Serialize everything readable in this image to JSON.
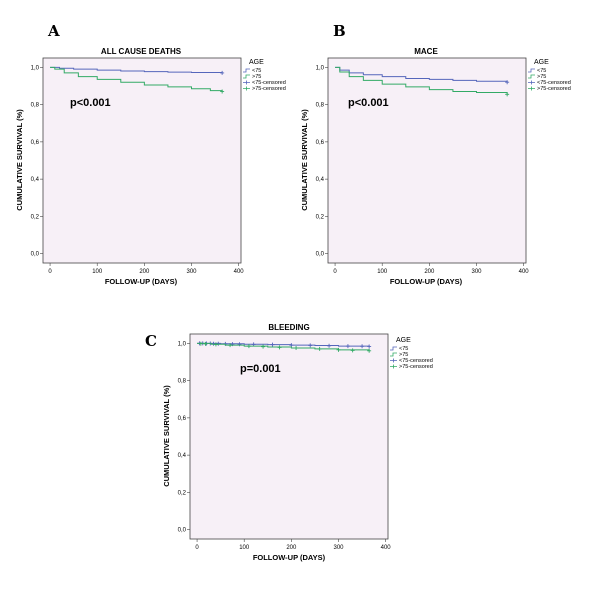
{
  "colors": {
    "under75": "#5566bb",
    "over75": "#33aa66",
    "plot_bg": "#f7f0f7"
  },
  "chart_data": [
    {
      "panel": "A",
      "type": "line",
      "title": "ALL CAUSE DEATHS",
      "xlabel": "FOLLOW-UP (DAYS)",
      "ylabel": "CUMULATIVE SURVIVAL (%)",
      "annotation": "p<0.001",
      "legend_title": "AGE",
      "legend": [
        "<75",
        ">75",
        "<75-censored",
        ">75-censored"
      ],
      "xlim": [
        -15,
        405
      ],
      "ylim": [
        -0.05,
        1.05
      ],
      "xticks": [
        0,
        100,
        200,
        300,
        400
      ],
      "yticks": [
        0.0,
        0.2,
        0.4,
        0.6,
        0.8,
        1.0
      ],
      "yticklabels": [
        "0,0",
        "0,2",
        "0,4",
        "0,6",
        "0,8",
        "1,0"
      ],
      "series": [
        {
          "name": "<75",
          "x": [
            0,
            20,
            50,
            100,
            150,
            200,
            250,
            300,
            365
          ],
          "y": [
            1.0,
            0.995,
            0.99,
            0.985,
            0.98,
            0.977,
            0.974,
            0.972,
            0.97
          ],
          "censored": [
            [
              365,
              0.97
            ]
          ]
        },
        {
          "name": ">75",
          "x": [
            0,
            10,
            30,
            60,
            100,
            150,
            200,
            250,
            300,
            340,
            365
          ],
          "y": [
            1.0,
            0.99,
            0.97,
            0.95,
            0.935,
            0.92,
            0.905,
            0.895,
            0.885,
            0.875,
            0.87
          ],
          "censored": [
            [
              365,
              0.87
            ]
          ]
        }
      ]
    },
    {
      "panel": "B",
      "type": "line",
      "title": "MACE",
      "xlabel": "FOLLOW-UP (DAYS)",
      "ylabel": "CUMULATIVE SURVIVAL (%)",
      "annotation": "p<0.001",
      "legend_title": "AGE",
      "legend": [
        "<75",
        ">75",
        "<75-censored",
        ">75-censored"
      ],
      "xlim": [
        -15,
        405
      ],
      "ylim": [
        -0.05,
        1.05
      ],
      "xticks": [
        0,
        100,
        200,
        300,
        400
      ],
      "yticks": [
        0.0,
        0.2,
        0.4,
        0.6,
        0.8,
        1.0
      ],
      "yticklabels": [
        "0,0",
        "0,2",
        "0,4",
        "0,6",
        "0,8",
        "1,0"
      ],
      "series": [
        {
          "name": "<75",
          "x": [
            0,
            10,
            30,
            60,
            100,
            150,
            200,
            250,
            300,
            365
          ],
          "y": [
            1.0,
            0.985,
            0.97,
            0.96,
            0.95,
            0.94,
            0.935,
            0.93,
            0.925,
            0.92
          ],
          "censored": [
            [
              365,
              0.92
            ]
          ]
        },
        {
          "name": ">75",
          "x": [
            0,
            10,
            30,
            60,
            100,
            150,
            200,
            250,
            300,
            365
          ],
          "y": [
            1.0,
            0.975,
            0.95,
            0.93,
            0.91,
            0.895,
            0.88,
            0.87,
            0.865,
            0.855
          ],
          "censored": [
            [
              365,
              0.855
            ]
          ]
        }
      ]
    },
    {
      "panel": "C",
      "type": "line",
      "title": "BLEEDING",
      "xlabel": "FOLLOW-UP (DAYS)",
      "ylabel": "CUMULATIVE SURVIVAL (%)",
      "annotation": "p=0.001",
      "legend_title": "AGE",
      "legend": [
        "<75",
        ">75",
        "<75-censored",
        ">75-censored"
      ],
      "xlim": [
        -15,
        405
      ],
      "ylim": [
        -0.05,
        1.05
      ],
      "xticks": [
        0,
        100,
        200,
        300,
        400
      ],
      "yticks": [
        0.0,
        0.2,
        0.4,
        0.6,
        0.8,
        1.0
      ],
      "yticklabels": [
        "0,0",
        "0,2",
        "0,4",
        "0,6",
        "0,8",
        "1,0"
      ],
      "series": [
        {
          "name": "<75",
          "x": [
            0,
            50,
            100,
            150,
            200,
            250,
            300,
            365
          ],
          "y": [
            1.0,
            0.998,
            0.995,
            0.993,
            0.99,
            0.988,
            0.985,
            0.983
          ],
          "censored": [
            [
              5,
              1.0
            ],
            [
              12,
              1.0
            ],
            [
              20,
              0.999
            ],
            [
              28,
              0.999
            ],
            [
              35,
              0.998
            ],
            [
              45,
              0.998
            ],
            [
              60,
              0.997
            ],
            [
              75,
              0.996
            ],
            [
              90,
              0.995
            ],
            [
              120,
              0.994
            ],
            [
              160,
              0.993
            ],
            [
              200,
              0.99
            ],
            [
              240,
              0.989
            ],
            [
              280,
              0.987
            ],
            [
              320,
              0.985
            ],
            [
              350,
              0.984
            ],
            [
              365,
              0.983
            ]
          ]
        },
        {
          "name": ">75",
          "x": [
            0,
            30,
            60,
            100,
            150,
            200,
            250,
            300,
            365
          ],
          "y": [
            1.0,
            0.995,
            0.99,
            0.985,
            0.98,
            0.975,
            0.97,
            0.965,
            0.96
          ],
          "censored": [
            [
              8,
              0.998
            ],
            [
              18,
              0.997
            ],
            [
              40,
              0.994
            ],
            [
              70,
              0.99
            ],
            [
              110,
              0.985
            ],
            [
              140,
              0.982
            ],
            [
              175,
              0.978
            ],
            [
              210,
              0.975
            ],
            [
              260,
              0.97
            ],
            [
              300,
              0.965
            ],
            [
              330,
              0.962
            ],
            [
              365,
              0.96
            ]
          ]
        }
      ]
    }
  ]
}
